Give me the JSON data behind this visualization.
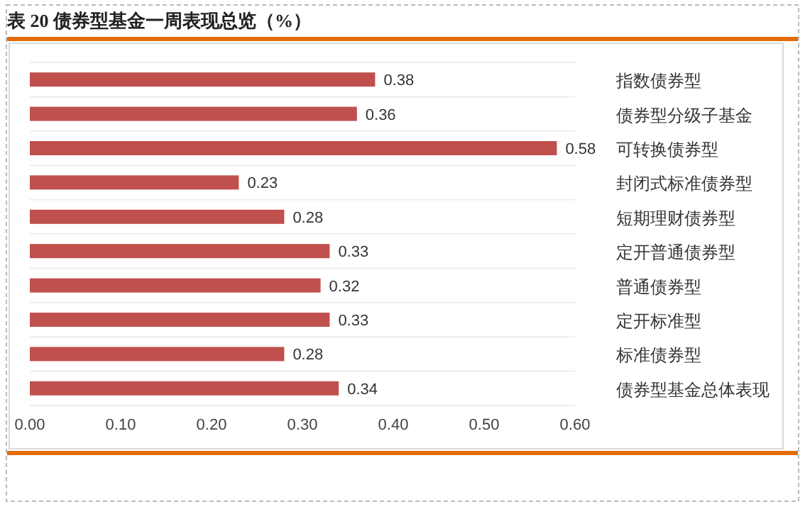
{
  "chart_data": {
    "type": "bar",
    "orientation": "horizontal",
    "title": "表 20  债券型基金一周表现总览（%）",
    "categories": [
      "指数债券型",
      "债券型分级子基金",
      "可转换债券型",
      "封闭式标准债券型",
      "短期理财债券型",
      "定开普通债券型",
      "普通债券型",
      "定开标准型",
      "标准债券型",
      "债券型基金总体表现"
    ],
    "values": [
      0.38,
      0.36,
      0.58,
      0.23,
      0.28,
      0.33,
      0.32,
      0.33,
      0.28,
      0.34
    ],
    "color": "#c0504d",
    "data_labels": true,
    "grid": "y",
    "xlim": [
      0,
      0.6
    ],
    "xticks": [
      {
        "value": 0,
        "label": "0.00"
      },
      {
        "value": 0.1,
        "label": "0.10"
      },
      {
        "value": 0.2,
        "label": "0.20"
      },
      {
        "value": 0.3,
        "label": "0.30"
      },
      {
        "value": 0.4,
        "label": "0.40"
      },
      {
        "value": 0.5,
        "label": "0.50"
      },
      {
        "value": 0.6,
        "label": "0.60"
      }
    ]
  }
}
